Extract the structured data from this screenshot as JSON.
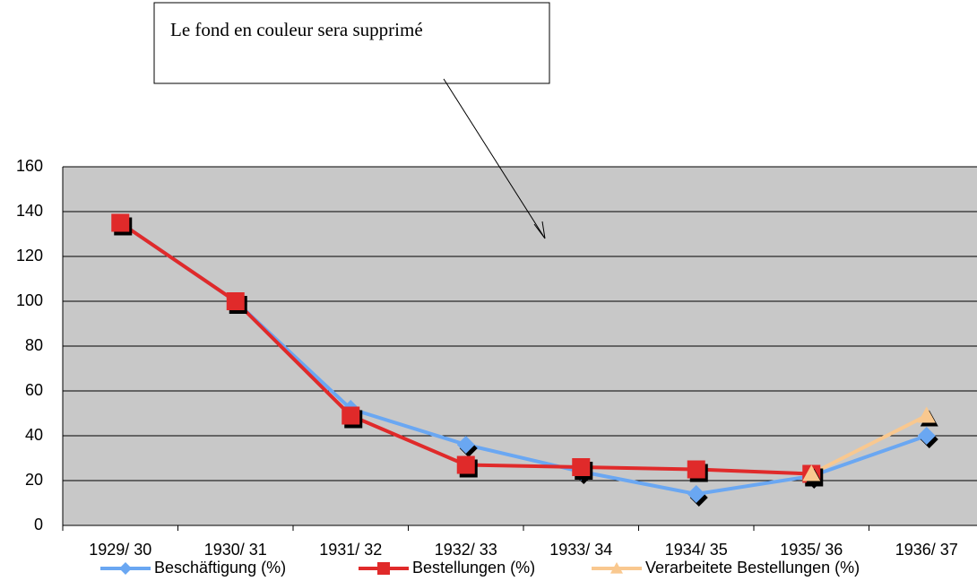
{
  "chart_data": {
    "type": "line",
    "annotations": [
      {
        "text": "Le fond en couleur sera supprimé"
      }
    ],
    "categories": [
      "1929/ 30",
      "1930/ 31",
      "1931/ 32",
      "1932/ 33",
      "1933/ 34",
      "1934/ 35",
      "1935/ 36",
      "1936/ 37"
    ],
    "series": [
      {
        "name": "Beschäftigung (%)",
        "color": "#6aa7f2",
        "marker": "diamond",
        "values": [
          135,
          100,
          52,
          36,
          24,
          14,
          22,
          40
        ]
      },
      {
        "name": "Bestellungen (%)",
        "color": "#e02a2a",
        "marker": "square",
        "values": [
          135,
          100,
          49,
          27,
          26,
          25,
          23,
          null
        ]
      },
      {
        "name": "Verarbeitete Bestellungen (%)",
        "color": "#f9c88f",
        "marker": "triangle",
        "values": [
          null,
          null,
          null,
          null,
          null,
          null,
          23,
          49
        ]
      }
    ],
    "ylim": [
      0,
      160
    ],
    "yticks": [
      0,
      20,
      40,
      60,
      80,
      100,
      120,
      140,
      160
    ],
    "grid": true,
    "background": "#c8c8c8",
    "legend": "bottom"
  }
}
